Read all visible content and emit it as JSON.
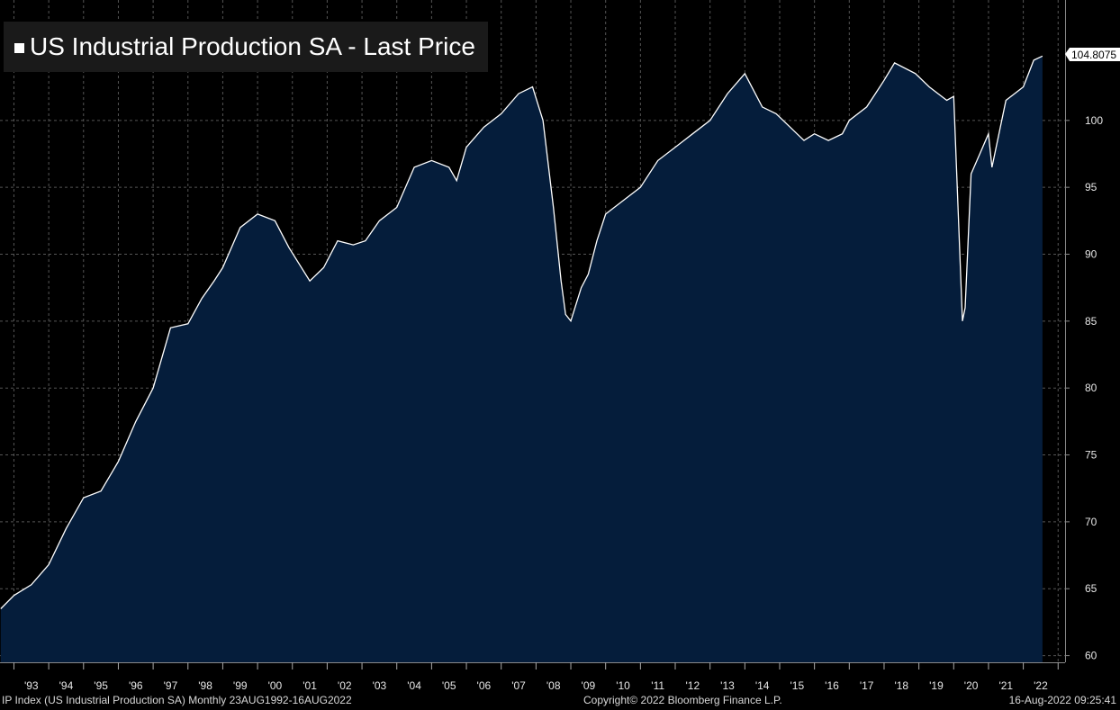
{
  "legend": {
    "label": "US Industrial Production SA - Last Price"
  },
  "last_value_label": "104.8075",
  "footer": {
    "left": "IP Index (US Industrial Production SA)  Monthly 23AUG1992-16AUG2022",
    "center": "Copyright© 2022 Bloomberg Finance L.P.",
    "right": "16-Aug-2022 09:25:41"
  },
  "colors": {
    "background": "#000000",
    "area_fill": "#051d3b",
    "line": "#ffffff",
    "grid": "#555555"
  },
  "chart_data": {
    "type": "area",
    "title": "US Industrial Production SA - Last Price",
    "xlabel": "",
    "ylabel": "",
    "ylim": [
      59.5,
      109
    ],
    "xlim": [
      1992.6,
      2023.2
    ],
    "y_axis_position": "right",
    "grid": true,
    "legend_position": "top-left",
    "y_ticks": [
      60,
      65,
      70,
      75,
      80,
      85,
      90,
      95,
      100
    ],
    "x_tick_labels": [
      "'93",
      "'94",
      "'95",
      "'96",
      "'97",
      "'98",
      "'99",
      "'00",
      "'01",
      "'02",
      "'03",
      "'04",
      "'05",
      "'06",
      "'07",
      "'08",
      "'09",
      "'10",
      "'11",
      "'12",
      "'13",
      "'14",
      "'15",
      "'16",
      "'17",
      "'18",
      "'19",
      "'20",
      "'21",
      "'22"
    ],
    "series": [
      {
        "name": "US Industrial Production SA - Last Price",
        "x": [
          1992.62,
          1993.0,
          1993.5,
          1994.0,
          1994.5,
          1995.0,
          1995.5,
          1996.0,
          1996.5,
          1997.0,
          1997.5,
          1998.0,
          1998.4,
          1998.75,
          1999.0,
          1999.5,
          2000.0,
          2000.5,
          2000.9,
          2001.5,
          2001.9,
          2002.3,
          2002.75,
          2003.1,
          2003.5,
          2004.0,
          2004.5,
          2005.0,
          2005.5,
          2005.72,
          2006.0,
          2006.5,
          2007.0,
          2007.5,
          2007.9,
          2008.2,
          2008.5,
          2008.72,
          2008.85,
          2009.0,
          2009.3,
          2009.5,
          2009.75,
          2010.0,
          2010.5,
          2011.0,
          2011.5,
          2012.0,
          2012.5,
          2013.0,
          2013.5,
          2014.0,
          2014.5,
          2014.9,
          2015.3,
          2015.7,
          2016.0,
          2016.4,
          2016.8,
          2017.0,
          2017.5,
          2017.75,
          2018.0,
          2018.3,
          2018.9,
          2019.3,
          2019.8,
          2020.0,
          2020.25,
          2020.33,
          2020.5,
          2020.75,
          2021.0,
          2021.1,
          2021.5,
          2022.0,
          2022.3,
          2022.55
        ],
        "values": [
          63.5,
          64.5,
          65.3,
          66.8,
          69.5,
          71.8,
          72.3,
          74.5,
          77.5,
          80.0,
          84.5,
          84.8,
          86.7,
          88.0,
          89.0,
          92.0,
          93.0,
          92.5,
          90.5,
          88.0,
          89.0,
          91.0,
          90.7,
          91.0,
          92.5,
          93.5,
          96.5,
          97.0,
          96.5,
          95.5,
          98.0,
          99.5,
          100.5,
          102.0,
          102.5,
          100.0,
          93.5,
          88.0,
          85.5,
          85.0,
          87.5,
          88.5,
          91.0,
          93.0,
          94.0,
          95.0,
          97.0,
          98.0,
          99.0,
          100.0,
          102.0,
          103.5,
          101.0,
          100.5,
          99.5,
          98.5,
          99.0,
          98.5,
          99.0,
          100.0,
          101.0,
          102.0,
          103.0,
          104.3,
          103.5,
          102.5,
          101.5,
          101.8,
          85.0,
          86.0,
          96.0,
          97.5,
          99.0,
          96.5,
          101.5,
          102.5,
          104.5,
          104.8075
        ]
      }
    ]
  }
}
